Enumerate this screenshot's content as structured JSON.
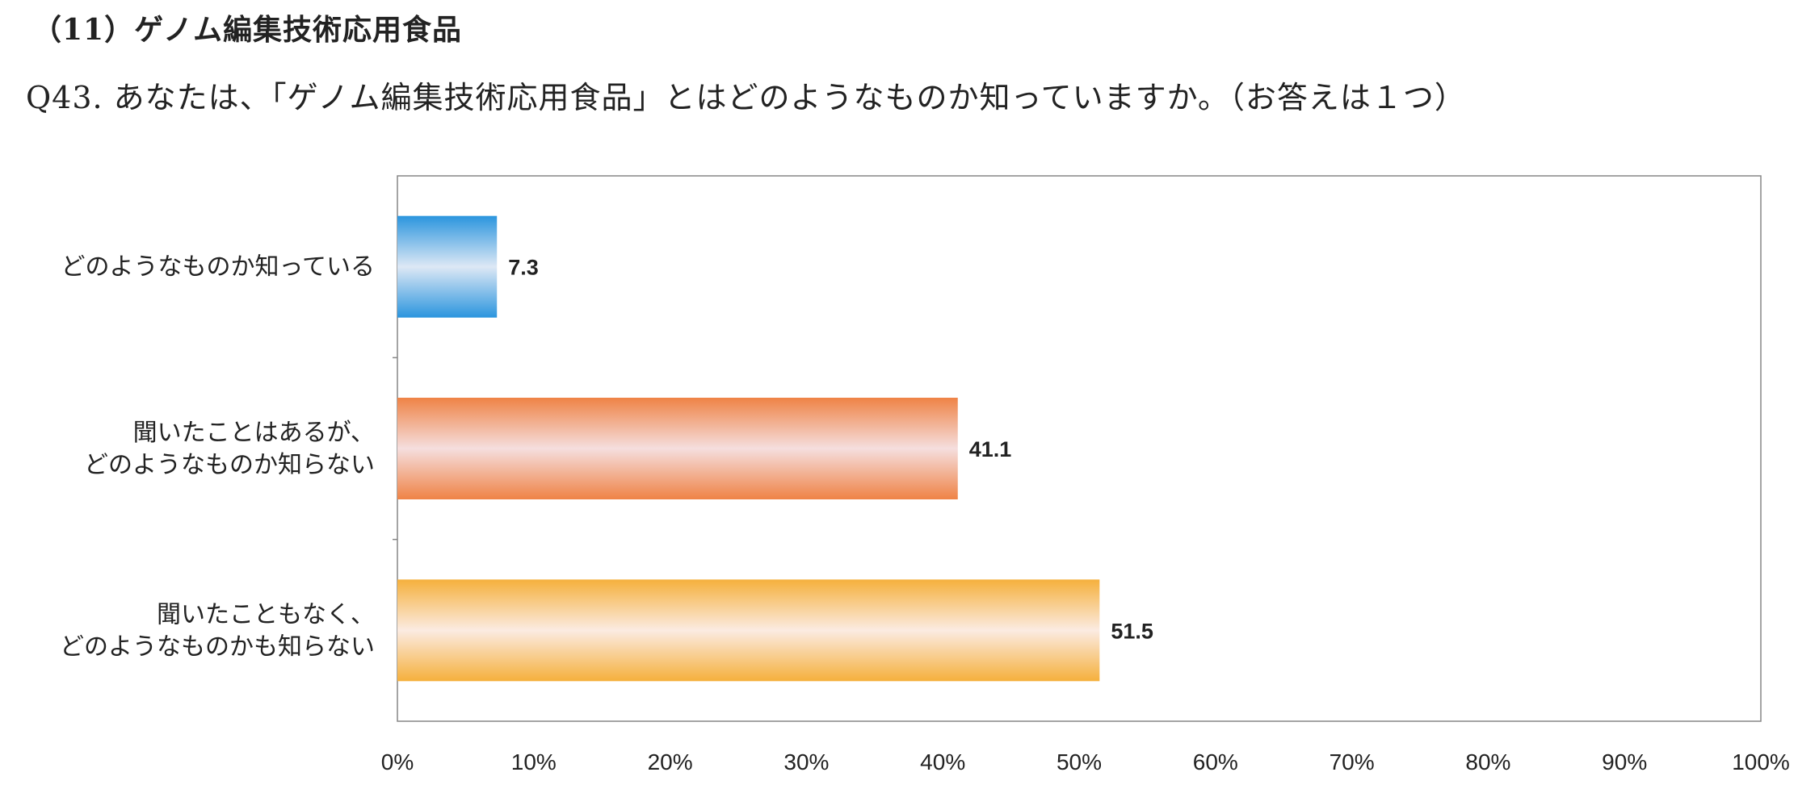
{
  "header": {
    "section_title": "（11）ゲノム編集技術応用食品",
    "question": "Q43.  あなたは、「ゲノム編集技術応用食品」とはどのようなものか知っていますか。（お答えは１つ）"
  },
  "chart_data": {
    "type": "bar",
    "orientation": "horizontal",
    "categories": [
      [
        "どのようなものか知っている"
      ],
      [
        "聞いたことはあるが、",
        "どのようなものか知らない"
      ],
      [
        "聞いたこともなく、",
        "どのようなものかも知らない"
      ]
    ],
    "values": [
      7.3,
      41.1,
      51.5
    ],
    "value_labels": [
      "7.3",
      "41.1",
      "51.5"
    ],
    "xlim": [
      0,
      100
    ],
    "x_ticks": [
      "0%",
      "10%",
      "20%",
      "30%",
      "40%",
      "50%",
      "60%",
      "70%",
      "80%",
      "90%",
      "100%"
    ],
    "grid": false,
    "legend": "none",
    "colors": [
      {
        "edge": "#2b95de",
        "center": "#dde8f5"
      },
      {
        "edge": "#ef8346",
        "center": "#f5dede"
      },
      {
        "edge": "#f5b03c",
        "center": "#fbebe2"
      }
    ],
    "frame_color": "#868686"
  }
}
